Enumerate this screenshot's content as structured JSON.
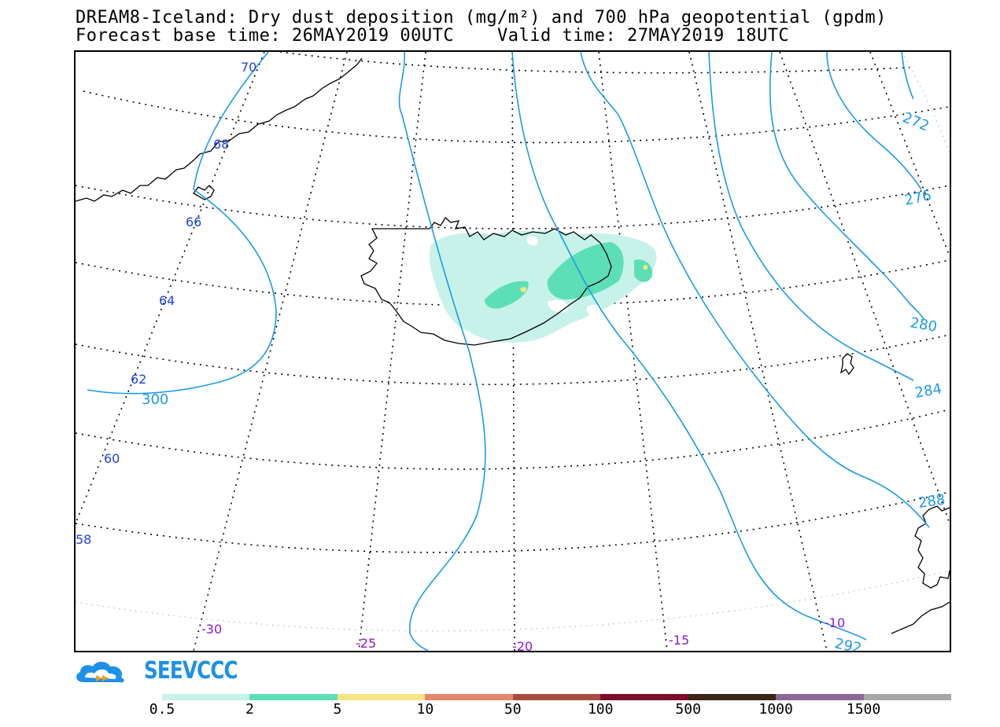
{
  "title": {
    "line1": "DREAM8-Iceland: Dry dust deposition (mg/m²) and 700 hPa geopotential (gpdm)",
    "line2": "Forecast base time: 26MAY2019 00UTC    Valid time: 27MAY2019 18UTC"
  },
  "map": {
    "latitude_labels": [
      "70",
      "68",
      "66",
      "64",
      "62",
      "60",
      "58"
    ],
    "longitude_labels": [
      "-30",
      "-25",
      "-20",
      "-15",
      "-10"
    ],
    "geopotential_labels": [
      "272",
      "276",
      "280",
      "284",
      "288",
      "292",
      "300"
    ],
    "colors": {
      "coast": "#000000",
      "graticule": "#000000",
      "contour": "#1a9be8",
      "lat_label": "#1f3fe6",
      "lon_label": "#8a18c9"
    }
  },
  "logo": {
    "text": "SEEVCCC",
    "icon": "cloud-arrow-icon",
    "color": "#1e90e6"
  },
  "legend": {
    "labels": [
      "0.5",
      "2",
      "5",
      "10",
      "50",
      "100",
      "500",
      "1000",
      "1500"
    ],
    "colors": [
      "#c6f2ea",
      "#5ddfb6",
      "#f7e382",
      "#e8866a",
      "#a84c3e",
      "#7e0d2c",
      "#3c2616",
      "#8d6896",
      "#a6a6a6"
    ]
  }
}
